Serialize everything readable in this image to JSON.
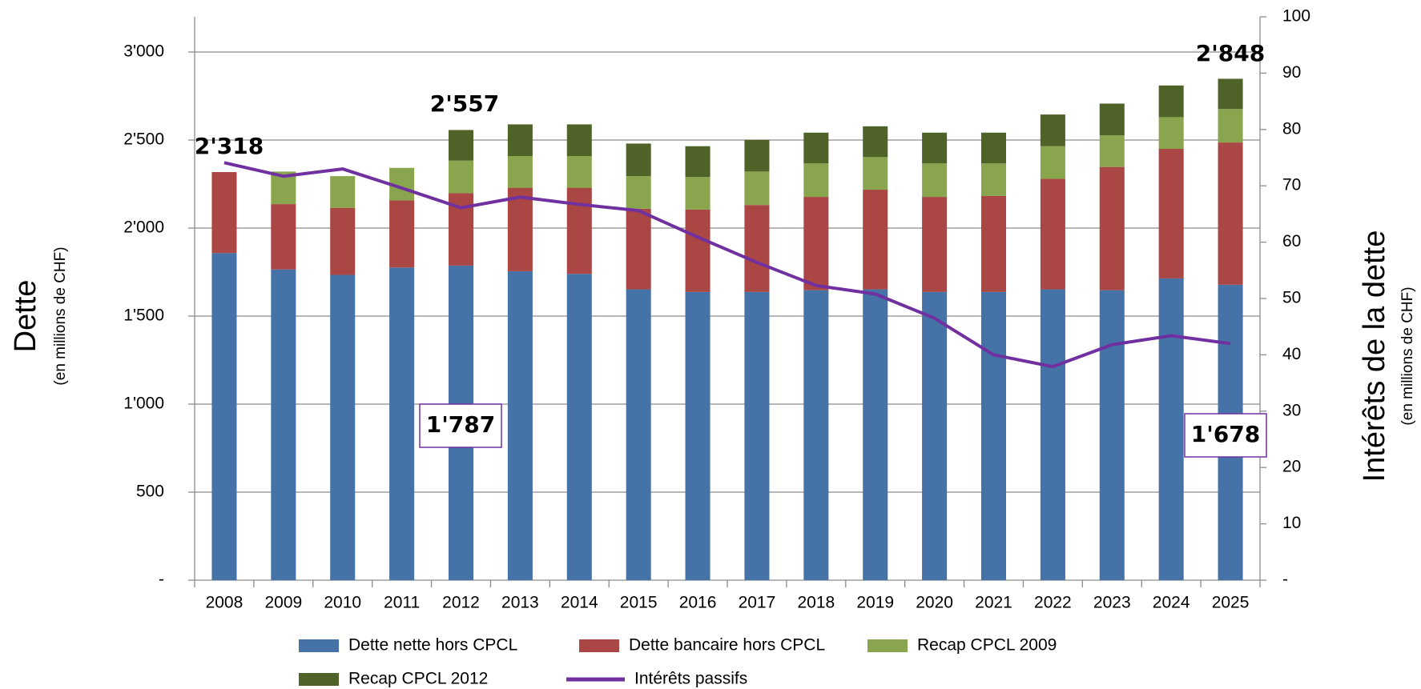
{
  "chart_data": {
    "type": "stacked-bar-line",
    "y_label": "Dette",
    "y_sublabel": "(en millions de CHF)",
    "y2_label": "Intérêts de la dette",
    "y2_sublabel": "(en millions de CHF)",
    "categories": [
      "2008",
      "2009",
      "2010",
      "2011",
      "2012",
      "2013",
      "2014",
      "2015",
      "2016",
      "2017",
      "2018",
      "2019",
      "2020",
      "2021",
      "2022",
      "2023",
      "2024",
      "2025"
    ],
    "series": [
      {
        "name": "Dette nette hors CPCL",
        "color": "#4572a7",
        "values": [
          1858,
          1765,
          1734,
          1776,
          1787,
          1755,
          1740,
          1652,
          1637,
          1637,
          1647,
          1652,
          1637,
          1637,
          1652,
          1647,
          1714,
          1678
        ]
      },
      {
        "name": "Dette bancaire hors CPCL",
        "color": "#aa4643",
        "values": [
          460,
          371,
          381,
          381,
          411,
          474,
          489,
          458,
          468,
          494,
          530,
          566,
          540,
          545,
          628,
          700,
          736,
          808
        ]
      },
      {
        "name": "Recap CPCL 2009",
        "color": "#89a54e",
        "values": [
          0,
          185,
          180,
          185,
          185,
          180,
          180,
          185,
          185,
          190,
          190,
          185,
          190,
          185,
          185,
          180,
          180,
          190
        ]
      },
      {
        "name": "Recap CPCL 2012",
        "color": "#4f6228",
        "values": [
          0,
          0,
          0,
          0,
          174,
          180,
          180,
          185,
          175,
          180,
          175,
          175,
          175,
          175,
          180,
          180,
          180,
          172
        ]
      },
      {
        "name": "Intérêts passifs",
        "color": "#7030a0",
        "axis": "y2",
        "values": [
          74.1,
          71.7,
          73,
          69.6,
          66.1,
          68,
          66.7,
          65.6,
          60.9,
          56.4,
          52.3,
          50.8,
          46.5,
          40,
          37.9,
          41.8,
          43.4,
          42
        ]
      }
    ],
    "ylim": [
      0,
      3200
    ],
    "yticks": [
      {
        "value": 0,
        "label": "-"
      },
      500,
      {
        "value": 1000,
        "label": "1'000"
      },
      {
        "value": 1500,
        "label": "1'500"
      },
      {
        "value": 2000,
        "label": "2'000"
      },
      {
        "value": 2500,
        "label": "2'500"
      },
      {
        "value": 3000,
        "label": "3'000"
      }
    ],
    "y2lim": [
      0,
      100
    ],
    "y2ticks": [
      {
        "value": 0,
        "label": "-"
      },
      10,
      20,
      30,
      40,
      50,
      60,
      70,
      80,
      90,
      100
    ],
    "grid": true,
    "legend": "bottom",
    "annotations": [
      "2'318",
      "2'557",
      "2'848",
      "1'787",
      "1'678"
    ]
  }
}
